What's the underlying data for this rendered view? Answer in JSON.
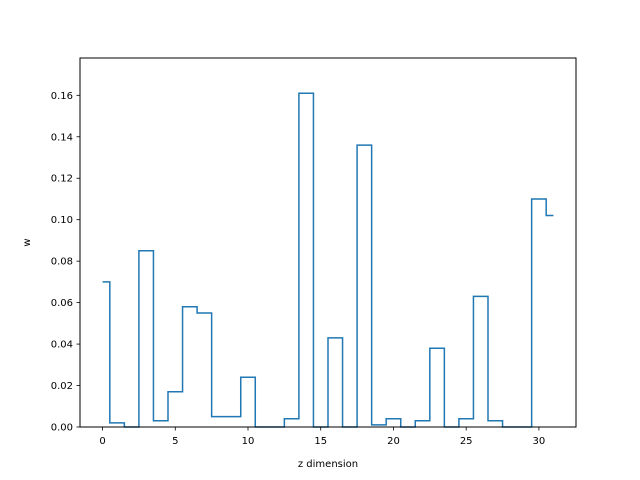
{
  "chart_data": {
    "type": "line",
    "drawstyle": "steps-mid",
    "title": "",
    "xlabel": "z dimension",
    "ylabel": "w",
    "xlim": [
      -1.55,
      32.55
    ],
    "ylim": [
      0,
      0.178
    ],
    "xticks": [
      0,
      5,
      10,
      15,
      20,
      25,
      30
    ],
    "yticks": [
      0.0,
      0.02,
      0.04,
      0.06,
      0.08,
      0.1,
      0.12,
      0.14,
      0.16
    ],
    "ytick_labels": [
      "0.00",
      "0.02",
      "0.04",
      "0.06",
      "0.08",
      "0.10",
      "0.12",
      "0.14",
      "0.16"
    ],
    "grid": false,
    "series": [
      {
        "color": "#1f77b4",
        "x": [
          0,
          1,
          2,
          3,
          4,
          5,
          6,
          7,
          8,
          9,
          10,
          11,
          12,
          13,
          14,
          15,
          16,
          17,
          18,
          19,
          20,
          21,
          22,
          23,
          24,
          25,
          26,
          27,
          28,
          29,
          30,
          31
        ],
        "y": [
          0.07,
          0.002,
          0.0,
          0.085,
          0.003,
          0.017,
          0.058,
          0.055,
          0.005,
          0.005,
          0.024,
          0.0,
          0.0,
          0.004,
          0.161,
          0.0,
          0.043,
          0.0,
          0.136,
          0.001,
          0.004,
          0.0,
          0.003,
          0.038,
          0.0,
          0.004,
          0.063,
          0.003,
          0.0,
          0.0,
          0.11,
          0.102
        ]
      }
    ]
  }
}
